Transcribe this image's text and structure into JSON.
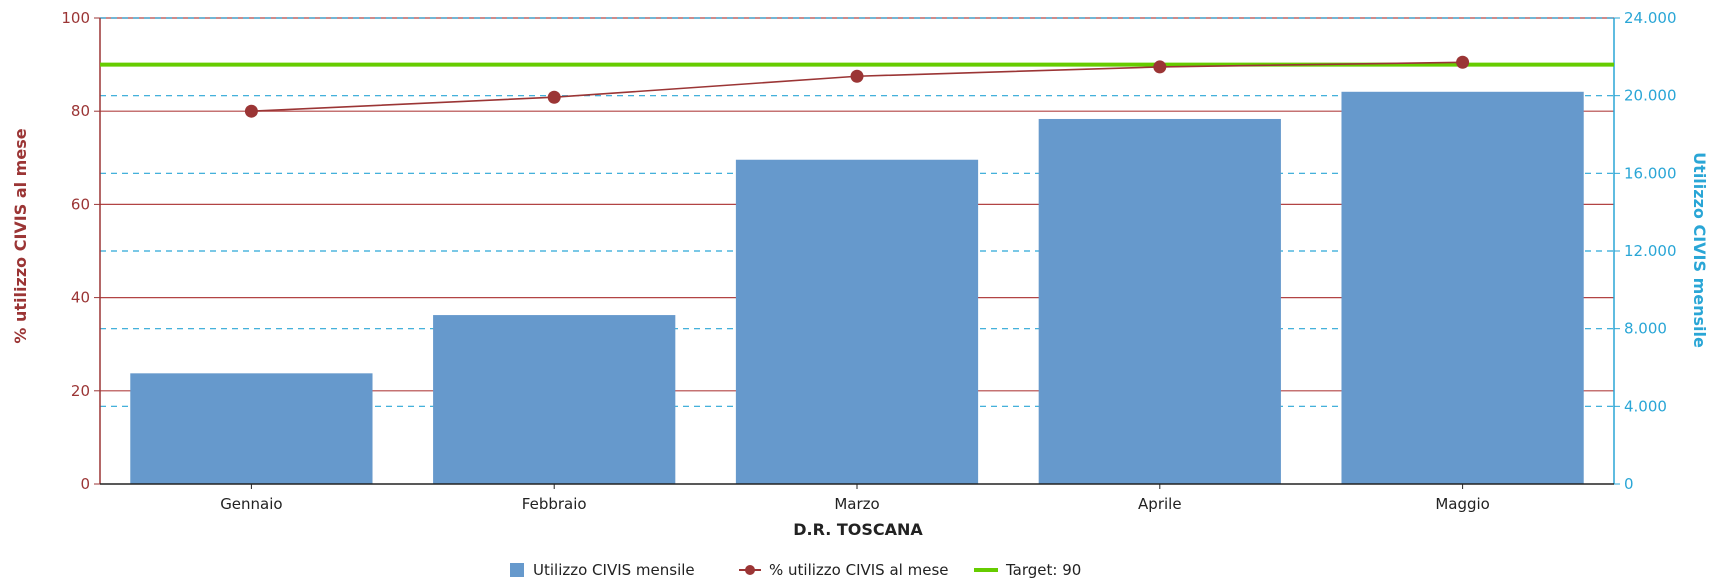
{
  "chart_data": {
    "type": "bar",
    "xlabel": "D.R. TOSCANA",
    "ylabel": "% utilizzo CIVIS al mese",
    "y2label": "Utilizzo CIVIS mensile",
    "categories": [
      "Gennaio",
      "Febbraio",
      "Marzo",
      "Aprile",
      "Maggio"
    ],
    "ylim": [
      0,
      100
    ],
    "y_ticks": [
      "0",
      "20",
      "40",
      "60",
      "80",
      "100"
    ],
    "y2lim": [
      0,
      24000
    ],
    "y2_ticks": [
      "0",
      "4.000",
      "8.000",
      "12.000",
      "16.000",
      "20.000",
      "24.000"
    ],
    "series": [
      {
        "name": "Utilizzo CIVIS mensile",
        "type": "bar",
        "axis": "right",
        "color": "#6699cc",
        "values": [
          5700,
          8700,
          16700,
          18800,
          20200
        ]
      },
      {
        "name": "% utilizzo CIVIS al mese",
        "type": "line",
        "axis": "left",
        "color": "#9b3535",
        "values": [
          80,
          83,
          87.5,
          89.5,
          90.5
        ]
      },
      {
        "name": "Target: 90",
        "type": "line",
        "axis": "left",
        "color": "#66cc00",
        "value": 90
      }
    ],
    "grid": true,
    "legend_position": "bottom"
  }
}
